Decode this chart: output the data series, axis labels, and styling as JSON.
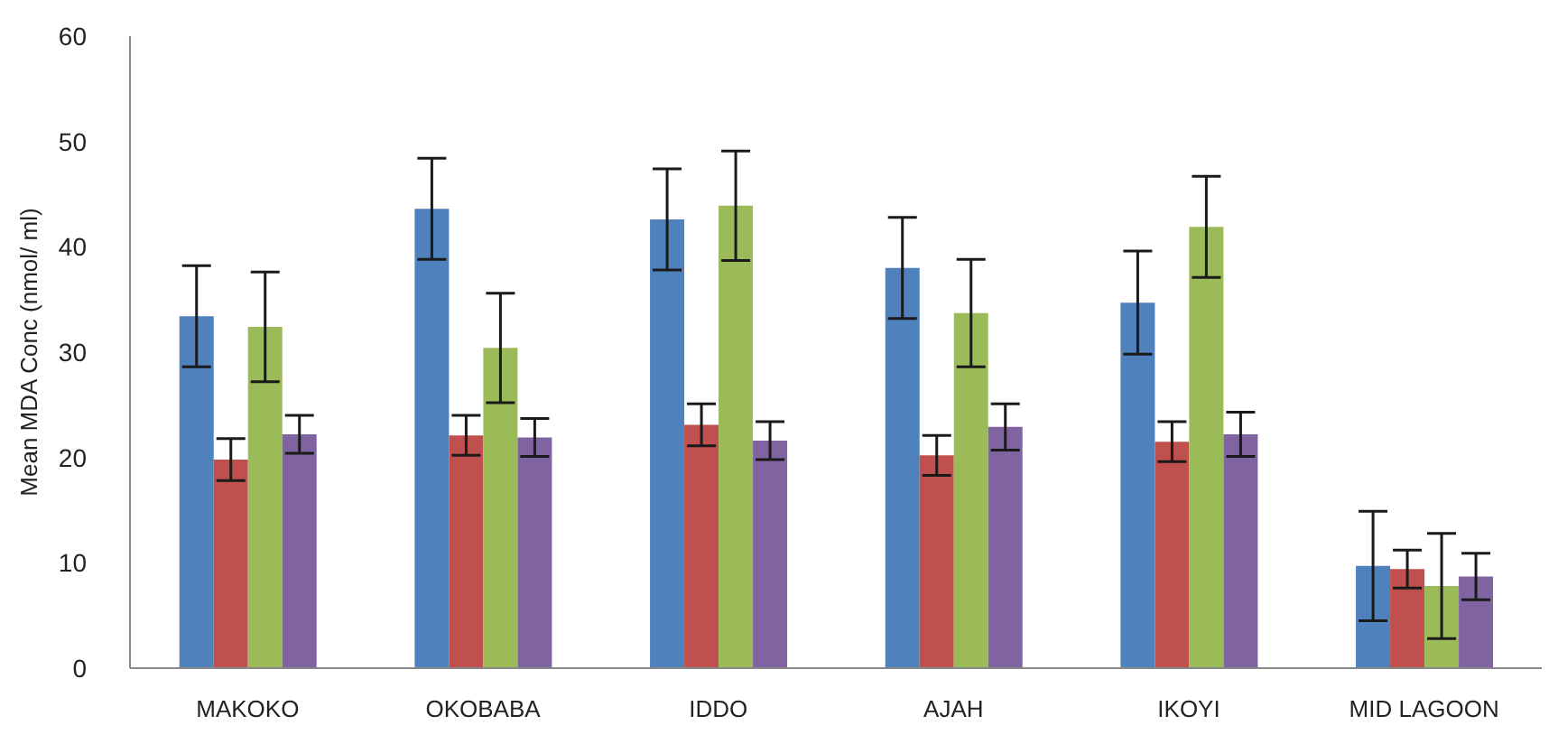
{
  "chart_data": {
    "type": "bar",
    "ylabel": "Mean MDA Conc (nmol/ ml)",
    "categories": [
      "MAKOKO",
      "OKOBABA",
      "IDDO",
      "AJAH",
      "IKOYI",
      "MID LAGOON"
    ],
    "series": [
      {
        "color": "#4f81bd",
        "values": [
          33.4,
          43.6,
          42.6,
          38.0,
          34.7,
          9.7
        ],
        "errors": [
          4.8,
          4.8,
          4.8,
          4.8,
          4.9,
          5.2
        ]
      },
      {
        "color": "#c0504d",
        "values": [
          19.8,
          22.1,
          23.1,
          20.2,
          21.5,
          9.4
        ],
        "errors": [
          2,
          1.9,
          2,
          1.9,
          1.9,
          1.8
        ]
      },
      {
        "color": "#9bbb59",
        "values": [
          32.4,
          30.4,
          43.9,
          33.7,
          41.9,
          7.8
        ],
        "errors": [
          5.2,
          5.2,
          5.2,
          5.1,
          4.8,
          5
        ]
      },
      {
        "color": "#8064a2",
        "values": [
          22.2,
          21.9,
          21.6,
          22.9,
          22.2,
          8.7
        ],
        "errors": [
          1.8,
          1.8,
          1.8,
          2.2,
          2.1,
          2.2
        ]
      }
    ],
    "ylim": [
      0,
      60
    ],
    "yticks": [
      0,
      10,
      20,
      30,
      40,
      50,
      60
    ],
    "grid": false,
    "legend": false
  }
}
